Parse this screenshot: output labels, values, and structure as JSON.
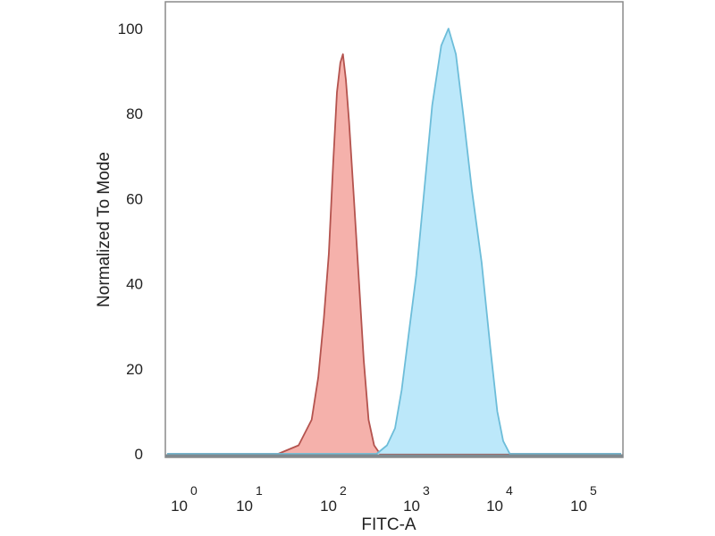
{
  "chart_data": {
    "type": "area",
    "title": "",
    "xlabel": "FITC-A",
    "ylabel": "Normalized To Mode",
    "x_scale": "log (biexponential display)",
    "xlim": [
      1,
      150000
    ],
    "ylim": [
      0,
      100
    ],
    "x_ticks": [
      {
        "base": "10",
        "exp": "0"
      },
      {
        "base": "10",
        "exp": "1"
      },
      {
        "base": "10",
        "exp": "2"
      },
      {
        "base": "10",
        "exp": "3"
      },
      {
        "base": "10",
        "exp": "4"
      },
      {
        "base": "10",
        "exp": "5"
      }
    ],
    "y_ticks": [
      "0",
      "20",
      "40",
      "60",
      "80",
      "100"
    ],
    "grid": false,
    "legend": "none",
    "series": [
      {
        "fill": "#f4a8a2",
        "stroke": "#b4534e",
        "points": [
          [
            20,
            0
          ],
          [
            35,
            2
          ],
          [
            50,
            8
          ],
          [
            60,
            18
          ],
          [
            70,
            32
          ],
          [
            80,
            47
          ],
          [
            90,
            68
          ],
          [
            100,
            85
          ],
          [
            110,
            92
          ],
          [
            118,
            94
          ],
          [
            128,
            88
          ],
          [
            140,
            78
          ],
          [
            160,
            60
          ],
          [
            185,
            40
          ],
          [
            210,
            22
          ],
          [
            240,
            8
          ],
          [
            280,
            2
          ],
          [
            330,
            0
          ]
        ]
      },
      {
        "fill": "#b5e6f9",
        "stroke": "#6dbdd9",
        "points": [
          [
            300,
            0
          ],
          [
            400,
            2
          ],
          [
            500,
            6
          ],
          [
            600,
            15
          ],
          [
            750,
            30
          ],
          [
            900,
            42
          ],
          [
            1100,
            60
          ],
          [
            1400,
            82
          ],
          [
            1800,
            96
          ],
          [
            2200,
            100
          ],
          [
            2700,
            94
          ],
          [
            3300,
            80
          ],
          [
            4200,
            62
          ],
          [
            5500,
            45
          ],
          [
            7000,
            25
          ],
          [
            8500,
            10
          ],
          [
            10000,
            3
          ],
          [
            12000,
            0
          ]
        ]
      }
    ]
  }
}
